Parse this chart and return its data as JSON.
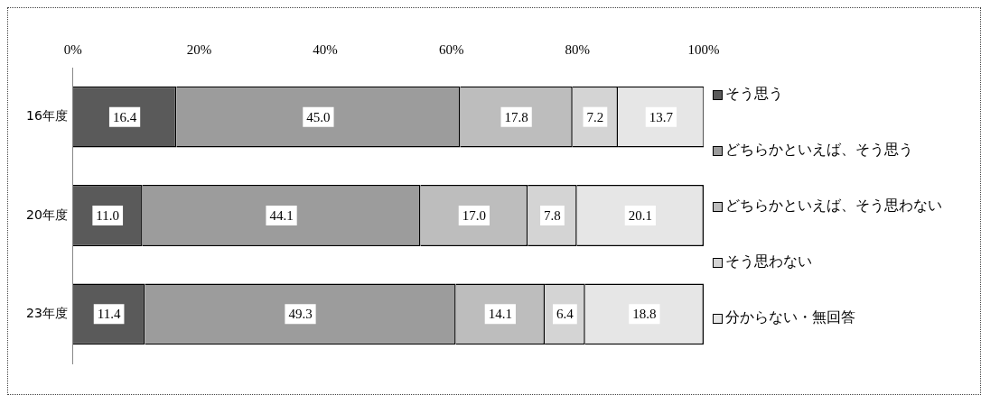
{
  "chart_data": {
    "type": "bar",
    "orientation": "horizontal",
    "stacked": true,
    "legend": "right",
    "grid": false,
    "data_labels": true,
    "categories": [
      "16年度",
      "20年度",
      "23年度"
    ],
    "xlim": [
      0,
      100
    ],
    "xticks": [
      {
        "value": 0,
        "label": "0%"
      },
      {
        "value": 20,
        "label": "20%"
      },
      {
        "value": 40,
        "label": "40%"
      },
      {
        "value": 60,
        "label": "60%"
      },
      {
        "value": 80,
        "label": "80%"
      },
      {
        "value": 100,
        "label": "100%"
      }
    ],
    "series": [
      {
        "name": "そう思う",
        "color": "#5a5a5a",
        "values": [
          16.4,
          11.0,
          11.4
        ],
        "value_labels": [
          "16.4",
          "11.0",
          "11.4"
        ]
      },
      {
        "name": "どちらかといえば、そう思う",
        "color": "#9c9c9c",
        "values": [
          45.0,
          44.1,
          49.3
        ],
        "value_labels": [
          "45.0",
          "44.1",
          "49.3"
        ]
      },
      {
        "name": "どちらかといえば、そう思わない",
        "color": "#bdbdbd",
        "values": [
          17.8,
          17.0,
          14.1
        ],
        "value_labels": [
          "17.8",
          "17.0",
          "14.1"
        ]
      },
      {
        "name": "そう思わない",
        "color": "#d4d4d4",
        "values": [
          7.2,
          7.8,
          6.4
        ],
        "value_labels": [
          "7.2",
          "7.8",
          "6.4"
        ]
      },
      {
        "name": "分からない・無回答",
        "color": "#e6e6e6",
        "values": [
          13.7,
          20.1,
          18.8
        ],
        "value_labels": [
          "13.7",
          "20.1",
          "18.8"
        ]
      }
    ]
  }
}
